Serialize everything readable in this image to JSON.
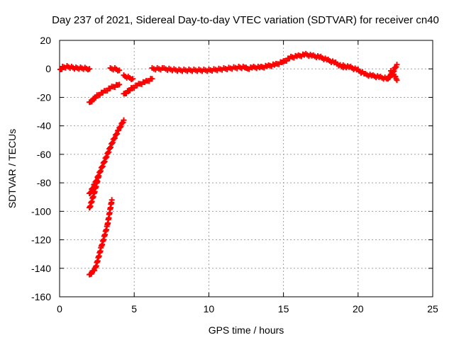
{
  "chart_data": {
    "type": "scatter",
    "title": "Day 237 of 2021, Sidereal Day-to-day VTEC variation (SDTVAR) for receiver cn40",
    "xlabel": "GPS time / hours",
    "ylabel": "SDTVAR / TECUs",
    "xlim": [
      0,
      25
    ],
    "ylim": [
      -160,
      20
    ],
    "xticks": [
      0,
      5,
      10,
      15,
      20,
      25
    ],
    "yticks": [
      -160,
      -140,
      -120,
      -100,
      -80,
      -60,
      -40,
      -20,
      0,
      20
    ],
    "grid": true,
    "marker": "plus",
    "color": "#ff0000",
    "series": [
      {
        "x": [
          0.05,
          0.2,
          0.5,
          0.8,
          1.1,
          1.4,
          1.7,
          2.0
        ],
        "y": [
          -1,
          1,
          1.5,
          1,
          0.5,
          0.5,
          0.3,
          0
        ]
      },
      {
        "x": [
          3.4,
          3.7,
          4.0
        ],
        "y": [
          0,
          0,
          -1
        ]
      },
      {
        "x": [
          4.3,
          4.6,
          4.9
        ],
        "y": [
          -5,
          -6,
          -7
        ]
      },
      {
        "x": [
          6.2,
          7.0,
          8.0,
          9.0,
          10.0,
          11.0,
          12.0,
          12.5
        ],
        "y": [
          0,
          0,
          -1,
          -1,
          -1,
          0,
          1,
          1
        ]
      },
      {
        "x": [
          12.5,
          13.0,
          13.5,
          14.0,
          14.5,
          15.0
        ],
        "y": [
          0,
          1,
          1,
          2,
          3,
          5
        ]
      },
      {
        "x": [
          15.0,
          15.5,
          16.0,
          16.5,
          17.0,
          17.5,
          18.0,
          18.5,
          19.0
        ],
        "y": [
          5,
          8,
          9,
          10,
          9,
          8,
          6,
          4,
          1
        ]
      },
      {
        "x": [
          19.0,
          19.5,
          20.0,
          20.5,
          21.0,
          21.5,
          22.0
        ],
        "y": [
          2,
          1,
          -1,
          -4,
          -5,
          -6,
          -7
        ]
      },
      {
        "x": [
          22.0,
          22.3,
          22.6
        ],
        "y": [
          -7,
          -3,
          3
        ]
      },
      {
        "x": [
          22.2,
          22.5,
          22.6
        ],
        "y": [
          -2,
          -6,
          -8
        ]
      },
      {
        "x": [
          2.0,
          2.5,
          3.0,
          3.5,
          4.0
        ],
        "y": [
          -24,
          -19,
          -16,
          -13,
          -11
        ]
      },
      {
        "x": [
          4.3,
          4.8,
          5.3,
          5.8,
          6.2
        ],
        "y": [
          -18,
          -14,
          -11,
          -9,
          -7
        ]
      },
      {
        "x": [
          2.0,
          2.4,
          2.8,
          3.2,
          3.6,
          4.0,
          4.3
        ],
        "y": [
          -88,
          -80,
          -70,
          -60,
          -50,
          -42,
          -36
        ]
      },
      {
        "x": [
          2.0,
          2.3,
          2.6
        ],
        "y": [
          -98,
          -88,
          -76
        ]
      },
      {
        "x": [
          2.0,
          2.4,
          2.8,
          3.2,
          3.5
        ],
        "y": [
          -145,
          -140,
          -125,
          -110,
          -92
        ]
      }
    ]
  }
}
